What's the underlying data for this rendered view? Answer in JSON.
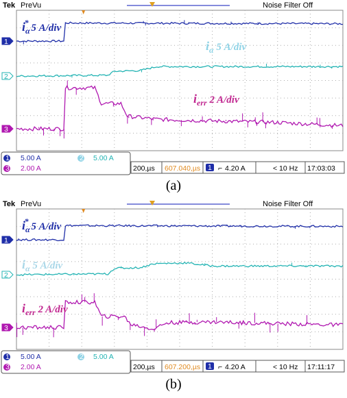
{
  "chart_data": [
    {
      "type": "line",
      "caption": "(a)",
      "header": {
        "brand": "Tek",
        "mode": "PreVu",
        "filter": "Noise Filter Off"
      },
      "series": [
        {
          "name": "i_α* 5 A/div",
          "channel": "1",
          "color": "#1f2ea8",
          "values": [
            [
              0,
              0
            ],
            [
              1.5,
              0
            ],
            [
              1.5,
              1.15
            ],
            [
              10,
              1.1
            ]
          ]
        },
        {
          "name": "i_α 5 A/div",
          "channel": "2",
          "color": "#22b3b3",
          "values": [
            [
              0,
              0
            ],
            [
              2.8,
              0.05
            ],
            [
              3.0,
              0.3
            ],
            [
              3.8,
              0.35
            ],
            [
              4.3,
              0.6
            ],
            [
              5,
              0.6
            ],
            [
              10,
              0.6
            ]
          ]
        },
        {
          "name": "i_err 2 A/div",
          "channel": "3",
          "color": "#b018b0",
          "values": [
            [
              0,
              0
            ],
            [
              1.5,
              0
            ],
            [
              1.5,
              2.6
            ],
            [
              2.4,
              2.6
            ],
            [
              2.6,
              1.6
            ],
            [
              3.2,
              1.6
            ],
            [
              3.4,
              0.8
            ],
            [
              4.3,
              0.6
            ],
            [
              6,
              0.5
            ],
            [
              8,
              0.4
            ],
            [
              10,
              0.2
            ]
          ]
        }
      ],
      "labels": [
        {
          "main": "i",
          "sub": "α",
          "sup": "*",
          "rest": " 5 A/div",
          "color": "#1f2ea8"
        },
        {
          "main": "i",
          "sub": "α",
          "sup": "",
          "rest": " 5 A/div",
          "color": "#8fd3e6"
        },
        {
          "main": "i",
          "sub": "err",
          "sup": "",
          "rest": " 2 A/div",
          "color": "#c0258f"
        }
      ],
      "status": {
        "ch1_scale": "5.00 A",
        "ch2_scale": "5.00 A",
        "ch3_scale": "2.00 A",
        "timebase": "200,µs",
        "position": "607.040,µs",
        "trig_ch": "1",
        "trig_level": "4.20 A",
        "freq": "< 10 Hz",
        "time": "17:03:03"
      }
    },
    {
      "type": "line",
      "caption": "(b)",
      "header": {
        "brand": "Tek",
        "mode": "PreVu",
        "filter": "Noise Filter Off"
      },
      "series": [
        {
          "name": "i_α* 5 A/div",
          "channel": "1",
          "color": "#1f2ea8",
          "values": [
            [
              0,
              0
            ],
            [
              1.5,
              0
            ],
            [
              1.5,
              0.9
            ],
            [
              10,
              0.85
            ]
          ]
        },
        {
          "name": "i_α 5 A/div",
          "channel": "2",
          "color": "#22b3b3",
          "values": [
            [
              0,
              0
            ],
            [
              2.8,
              0.05
            ],
            [
              3.0,
              0.4
            ],
            [
              3.8,
              0.45
            ],
            [
              4.2,
              0.7
            ],
            [
              5.2,
              0.75
            ],
            [
              6,
              0.55
            ],
            [
              10,
              0.55
            ]
          ]
        },
        {
          "name": "i_err 2 A/div",
          "channel": "3",
          "color": "#b018b0",
          "values": [
            [
              0,
              0
            ],
            [
              1.5,
              0
            ],
            [
              1.5,
              1.6
            ],
            [
              2.4,
              1.6
            ],
            [
              2.6,
              0.7
            ],
            [
              3.3,
              0.7
            ],
            [
              3.5,
              0.2
            ],
            [
              4.2,
              -0.1
            ],
            [
              4.6,
              0.3
            ],
            [
              6,
              0.35
            ],
            [
              8,
              0.25
            ],
            [
              10,
              0.15
            ]
          ]
        }
      ],
      "labels": [
        {
          "main": "i",
          "sub": "α",
          "sup": "*",
          "rest": " 5 A/div",
          "color": "#1f2ea8"
        },
        {
          "main": "i",
          "sub": "α",
          "sup": "",
          "rest": " 5 A/div",
          "color": "#a9d7e8"
        },
        {
          "main": "i",
          "sub": "err",
          "sup": "",
          "rest": " 2 A/div",
          "color": "#c0258f"
        }
      ],
      "status": {
        "ch1_scale": "5.00 A",
        "ch2_scale": "5.00 A",
        "ch3_scale": "2.00 A",
        "timebase": "200,µs",
        "position": "607.200,µs",
        "trig_ch": "1",
        "trig_level": "4.20 A",
        "freq": "< 10 Hz",
        "time": "17:11:17"
      }
    }
  ]
}
